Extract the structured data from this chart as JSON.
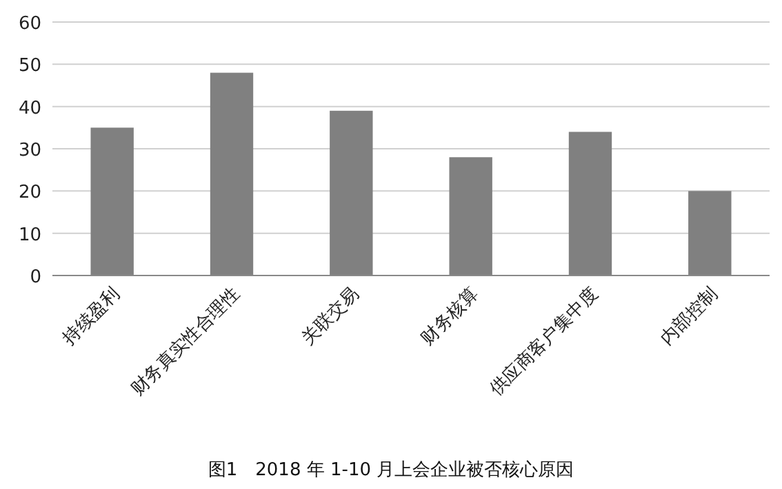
{
  "chart_data": {
    "type": "bar",
    "title": "图1　2018 年 1-10 月上会企业被否核心原因",
    "categories": [
      "持续盈利",
      "财务真实性合理性",
      "关联交易",
      "财务核算",
      "供应商客户集中度",
      "内部控制"
    ],
    "values": [
      35,
      48,
      39,
      28,
      34,
      20
    ],
    "color": "#808080",
    "ylim": [
      0,
      60
    ],
    "yticks": [
      0,
      10,
      20,
      30,
      40,
      50,
      60
    ],
    "grid": "y"
  }
}
